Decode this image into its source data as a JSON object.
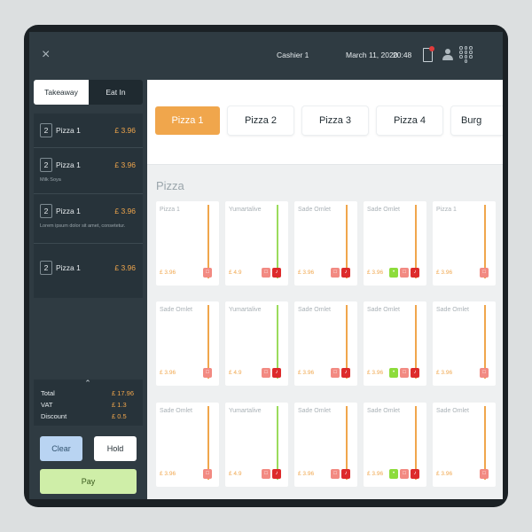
{
  "header": {
    "close_icon": "×",
    "cashier": "Cashier 1",
    "date": "March 11, 2020",
    "time": "20:48"
  },
  "order_tabs": [
    "Takeaway",
    "Eat In"
  ],
  "order_items": [
    {
      "qty": "2",
      "name": "Pizza 1",
      "price": "£ 3.96",
      "note": ""
    },
    {
      "qty": "2",
      "name": "Pizza 1",
      "price": "£ 3.96",
      "note": "Milk Soya"
    },
    {
      "qty": "2",
      "name": "Pizza 1",
      "price": "£ 3.96",
      "note": "Lorem ipsum dolor sit amet, consetetur."
    },
    {
      "qty": "2",
      "name": "Pizza 1",
      "price": "£ 3.96",
      "note": ""
    }
  ],
  "totals": {
    "total_label": "Total",
    "total_value": "£ 17.96",
    "vat_label": "VAT",
    "vat_value": "£ 1.3",
    "discount_label": "Discount",
    "discount_value": "£ 0.5"
  },
  "actions": {
    "clear": "Clear",
    "hold": "Hold",
    "pay": "Pay"
  },
  "categories": [
    "Pizza 1",
    "Pizza 2",
    "Pizza 3",
    "Pizza 4",
    "Burg"
  ],
  "active_category": 0,
  "grid_title": "Pizza",
  "colors": {
    "accent_orange": "#f0a64c",
    "bar_green": "#9bdc5c",
    "tag_pink": "#f28a82",
    "tag_red": "#dd2b2b",
    "tag_green": "#8ddc3c",
    "sidebar_bg": "#2f3b42"
  },
  "products": [
    [
      {
        "name": "Pizza 1",
        "price": "£ 3.96",
        "bar": "orange",
        "tags": [
          "pink"
        ]
      },
      {
        "name": "Yumartalive",
        "price": "£ 4.9",
        "bar": "green",
        "tags": [
          "pink",
          "red"
        ]
      },
      {
        "name": "Sade Omlet",
        "price": "£ 3.96",
        "bar": "orange",
        "tags": [
          "pink",
          "red"
        ]
      },
      {
        "name": "Sade Omlet",
        "price": "£ 3.96",
        "bar": "orange",
        "tags": [
          "green",
          "pink",
          "red"
        ]
      },
      {
        "name": "Pizza 1",
        "price": "£ 3.96",
        "bar": "orange",
        "tags": [
          "pink"
        ]
      }
    ],
    [
      {
        "name": "Sade Omlet",
        "price": "£ 3.96",
        "bar": "orange",
        "tags": [
          "pink"
        ]
      },
      {
        "name": "Yumartalive",
        "price": "£ 4.9",
        "bar": "green",
        "tags": [
          "pink",
          "red"
        ]
      },
      {
        "name": "Sade Omlet",
        "price": "£ 3.96",
        "bar": "orange",
        "tags": [
          "pink",
          "red"
        ]
      },
      {
        "name": "Sade Omlet",
        "price": "£ 3.96",
        "bar": "orange",
        "tags": [
          "green",
          "pink",
          "red"
        ]
      },
      {
        "name": "Sade Omlet",
        "price": "£ 3.96",
        "bar": "orange",
        "tags": [
          "pink"
        ]
      }
    ],
    [
      {
        "name": "Sade Omlet",
        "price": "£ 3.96",
        "bar": "orange",
        "tags": [
          "pink"
        ]
      },
      {
        "name": "Yumartalive",
        "price": "£ 4.9",
        "bar": "green",
        "tags": [
          "pink",
          "red"
        ]
      },
      {
        "name": "Sade Omlet",
        "price": "£ 3.96",
        "bar": "orange",
        "tags": [
          "pink",
          "red"
        ]
      },
      {
        "name": "Sade Omlet",
        "price": "£ 3.96",
        "bar": "orange",
        "tags": [
          "green",
          "pink",
          "red"
        ]
      },
      {
        "name": "Sade Omlet",
        "price": "£ 3.96",
        "bar": "orange",
        "tags": [
          "pink"
        ]
      }
    ]
  ]
}
